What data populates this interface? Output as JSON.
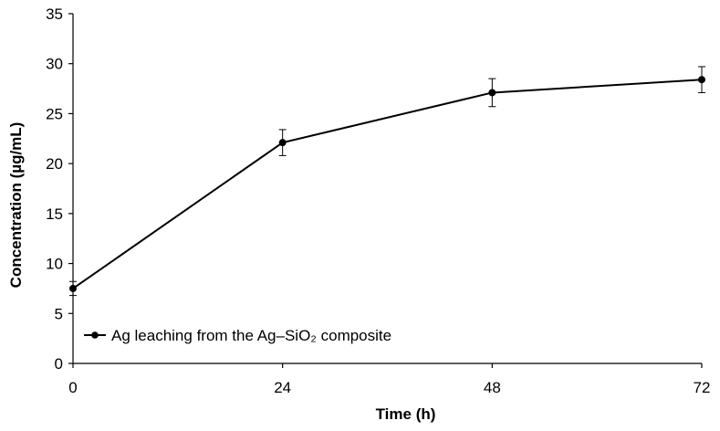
{
  "chart_data": {
    "type": "line",
    "title": "",
    "xlabel": "Time (h)",
    "ylabel": "Concentration (µg/mL)",
    "x": [
      0,
      24,
      48,
      72
    ],
    "x_tick_labels": [
      "0",
      "24",
      "48",
      "72"
    ],
    "xlim": [
      0,
      72
    ],
    "ylim": [
      0,
      35
    ],
    "y_ticks": [
      0,
      5,
      10,
      15,
      20,
      25,
      30,
      35
    ],
    "y_tick_labels": [
      "0",
      "5",
      "10",
      "15",
      "20",
      "25",
      "30",
      "35"
    ],
    "grid": false,
    "legend_position": "bottom-left",
    "series": [
      {
        "name": "Ag leaching from the Ag–SiO₂ composite",
        "values": [
          7.5,
          22.1,
          27.1,
          28.4
        ],
        "errors": [
          0.7,
          1.3,
          1.4,
          1.3
        ],
        "color": "#000000",
        "marker": "circle"
      }
    ]
  }
}
